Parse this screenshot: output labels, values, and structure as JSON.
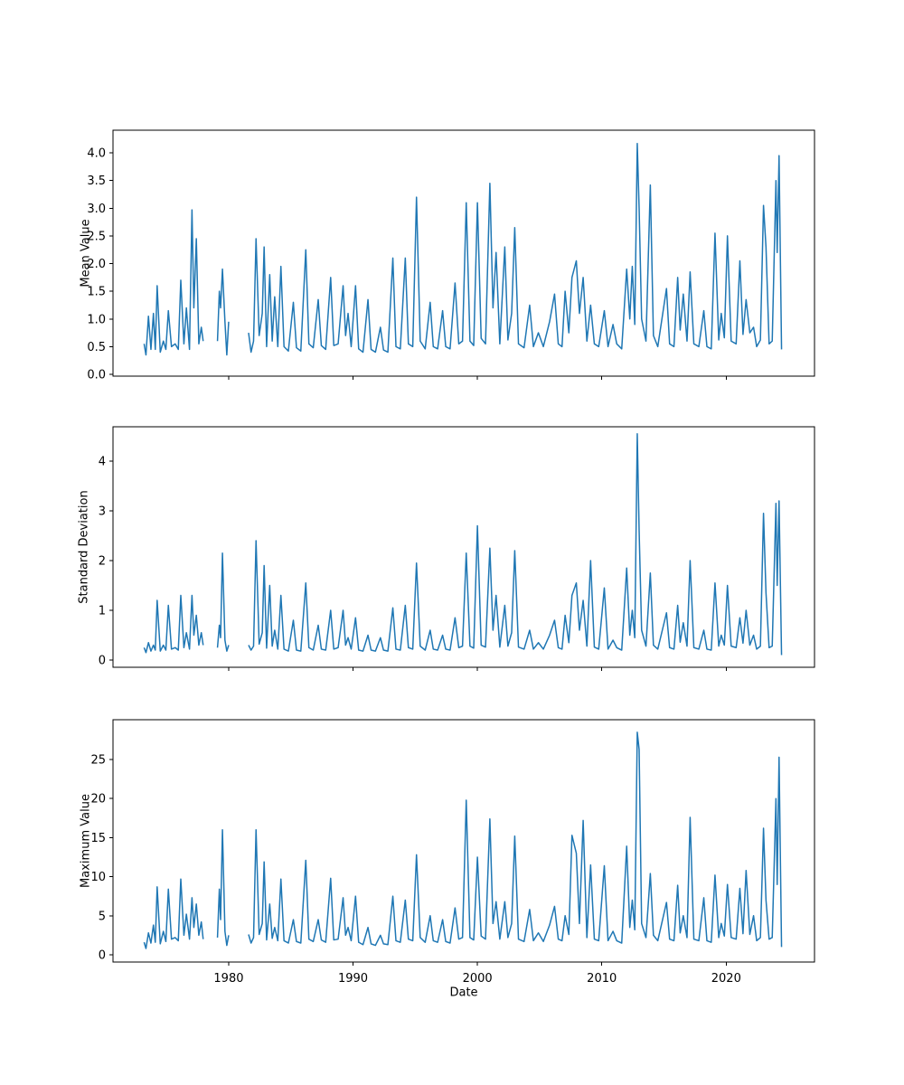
{
  "figure": {
    "background": "#ffffff",
    "text_color": "#000000"
  },
  "chart_data": {
    "type": "line",
    "title": "",
    "xlabel": "Date",
    "xlim": [
      1970.7,
      2027.1
    ],
    "xticks": [
      1980,
      1990,
      2000,
      2010,
      2020
    ],
    "xtick_labels": [
      "1980",
      "1990",
      "2000",
      "2010",
      "2020"
    ],
    "line_color": "#1f77b4",
    "grid": false,
    "legend": "none",
    "panels": [
      {
        "ylabel": "Mean Value",
        "series": "mean",
        "ylim": [
          -0.033,
          4.41
        ],
        "yticks": [
          0.0,
          0.5,
          1.0,
          1.5,
          2.0,
          2.5,
          3.0,
          3.5,
          4.0
        ],
        "ytick_labels": [
          "0.0",
          "0.5",
          "1.0",
          "1.5",
          "2.0",
          "2.5",
          "3.0",
          "3.5",
          "4.0"
        ]
      },
      {
        "ylabel": "Standard Deviation",
        "series": "std",
        "ylim": [
          -0.145,
          4.69
        ],
        "yticks": [
          0,
          1,
          2,
          3,
          4
        ],
        "ytick_labels": [
          "0",
          "1",
          "2",
          "3",
          "4"
        ]
      },
      {
        "ylabel": "Maximum Value",
        "series": "max",
        "ylim": [
          -0.93,
          30.1
        ],
        "yticks": [
          0,
          5,
          10,
          15,
          20,
          25
        ],
        "ytick_labels": [
          "0",
          "5",
          "10",
          "15",
          "20",
          "25"
        ]
      }
    ],
    "points_format": [
      "year",
      "mean",
      "std",
      "max"
    ],
    "points": [
      [
        1973.2,
        0.55,
        0.25,
        1.6
      ],
      [
        1973.35,
        0.35,
        0.15,
        0.8
      ],
      [
        1973.55,
        1.05,
        0.35,
        2.8
      ],
      [
        1973.75,
        0.45,
        0.18,
        1.5
      ],
      [
        1973.95,
        1.1,
        0.3,
        3.8
      ],
      [
        1974.1,
        0.45,
        0.2,
        1.6
      ],
      [
        1974.25,
        1.6,
        1.2,
        8.7
      ],
      [
        1974.5,
        0.4,
        0.18,
        1.4
      ],
      [
        1974.75,
        0.6,
        0.3,
        3.0
      ],
      [
        1974.95,
        0.45,
        0.2,
        1.7
      ],
      [
        1975.15,
        1.15,
        1.1,
        8.4
      ],
      [
        1975.4,
        0.5,
        0.22,
        2.0
      ],
      [
        1975.7,
        0.55,
        0.25,
        2.2
      ],
      [
        1975.95,
        0.45,
        0.2,
        1.8
      ],
      [
        1976.15,
        1.7,
        1.3,
        9.7
      ],
      [
        1976.4,
        0.55,
        0.25,
        2.5
      ],
      [
        1976.6,
        1.2,
        0.55,
        5.2
      ],
      [
        1976.85,
        0.45,
        0.22,
        2.0
      ],
      [
        1977.05,
        2.97,
        1.3,
        7.3
      ],
      [
        1977.2,
        1.2,
        0.5,
        3.5
      ],
      [
        1977.4,
        2.45,
        0.9,
        6.5
      ],
      [
        1977.6,
        0.55,
        0.3,
        2.5
      ],
      [
        1977.8,
        0.85,
        0.55,
        4.2
      ],
      [
        1977.95,
        0.6,
        0.3,
        2.0
      ],
      [
        1978.5,
        null,
        null,
        null
      ],
      [
        1979.1,
        0.6,
        0.25,
        2.2
      ],
      [
        1979.25,
        1.5,
        0.7,
        8.4
      ],
      [
        1979.35,
        1.2,
        0.45,
        4.5
      ],
      [
        1979.5,
        1.9,
        2.15,
        16.0
      ],
      [
        1979.7,
        0.95,
        0.4,
        3.0
      ],
      [
        1979.85,
        0.35,
        0.18,
        1.2
      ],
      [
        1980.0,
        0.95,
        0.3,
        2.5
      ],
      [
        1980.7,
        null,
        null,
        null
      ],
      [
        1981.6,
        0.75,
        0.3,
        2.6
      ],
      [
        1981.8,
        0.4,
        0.2,
        1.5
      ],
      [
        1982.0,
        0.6,
        0.28,
        2.2
      ],
      [
        1982.2,
        2.45,
        2.4,
        16.0
      ],
      [
        1982.45,
        0.7,
        0.32,
        2.6
      ],
      [
        1982.7,
        1.1,
        0.55,
        4.0
      ],
      [
        1982.85,
        2.3,
        1.9,
        11.9
      ],
      [
        1983.05,
        0.5,
        0.24,
        1.9
      ],
      [
        1983.3,
        1.8,
        1.5,
        6.5
      ],
      [
        1983.5,
        0.6,
        0.28,
        2.1
      ],
      [
        1983.7,
        1.4,
        0.6,
        3.5
      ],
      [
        1983.95,
        0.5,
        0.22,
        1.8
      ],
      [
        1984.2,
        1.95,
        1.3,
        9.7
      ],
      [
        1984.45,
        0.5,
        0.22,
        1.8
      ],
      [
        1984.8,
        0.42,
        0.18,
        1.5
      ],
      [
        1985.2,
        1.3,
        0.8,
        4.5
      ],
      [
        1985.45,
        0.48,
        0.2,
        1.7
      ],
      [
        1985.8,
        0.42,
        0.18,
        1.5
      ],
      [
        1986.2,
        2.25,
        1.55,
        12.1
      ],
      [
        1986.45,
        0.55,
        0.25,
        2.0
      ],
      [
        1986.8,
        0.48,
        0.2,
        1.7
      ],
      [
        1987.2,
        1.35,
        0.7,
        4.5
      ],
      [
        1987.45,
        0.52,
        0.22,
        1.9
      ],
      [
        1987.8,
        0.45,
        0.2,
        1.6
      ],
      [
        1988.2,
        1.75,
        1.0,
        9.8
      ],
      [
        1988.45,
        0.52,
        0.22,
        1.9
      ],
      [
        1988.8,
        0.55,
        0.25,
        2.0
      ],
      [
        1989.2,
        1.6,
        1.0,
        7.3
      ],
      [
        1989.4,
        0.7,
        0.3,
        2.5
      ],
      [
        1989.6,
        1.1,
        0.45,
        3.5
      ],
      [
        1989.85,
        0.5,
        0.22,
        1.8
      ],
      [
        1990.2,
        1.6,
        0.85,
        7.5
      ],
      [
        1990.45,
        0.46,
        0.2,
        1.6
      ],
      [
        1990.8,
        0.4,
        0.18,
        1.3
      ],
      [
        1991.2,
        1.35,
        0.5,
        3.5
      ],
      [
        1991.45,
        0.45,
        0.2,
        1.4
      ],
      [
        1991.8,
        0.4,
        0.18,
        1.2
      ],
      [
        1992.2,
        0.85,
        0.45,
        2.5
      ],
      [
        1992.45,
        0.44,
        0.2,
        1.4
      ],
      [
        1992.8,
        0.4,
        0.18,
        1.3
      ],
      [
        1993.2,
        2.1,
        1.05,
        7.5
      ],
      [
        1993.45,
        0.5,
        0.22,
        1.8
      ],
      [
        1993.8,
        0.46,
        0.2,
        1.6
      ],
      [
        1994.2,
        2.1,
        1.1,
        7.0
      ],
      [
        1994.45,
        0.55,
        0.25,
        2.0
      ],
      [
        1994.8,
        0.5,
        0.22,
        1.8
      ],
      [
        1995.1,
        3.2,
        1.95,
        12.8
      ],
      [
        1995.4,
        0.6,
        0.28,
        2.2
      ],
      [
        1995.8,
        0.46,
        0.2,
        1.6
      ],
      [
        1996.2,
        1.3,
        0.6,
        5.0
      ],
      [
        1996.45,
        0.5,
        0.22,
        1.8
      ],
      [
        1996.8,
        0.46,
        0.2,
        1.6
      ],
      [
        1997.2,
        1.15,
        0.5,
        4.5
      ],
      [
        1997.45,
        0.5,
        0.22,
        1.7
      ],
      [
        1997.8,
        0.46,
        0.2,
        1.5
      ],
      [
        1998.2,
        1.65,
        0.85,
        6.0
      ],
      [
        1998.5,
        0.55,
        0.25,
        2.0
      ],
      [
        1998.8,
        0.6,
        0.28,
        2.2
      ],
      [
        1999.1,
        3.1,
        2.15,
        19.8
      ],
      [
        1999.4,
        0.6,
        0.28,
        2.2
      ],
      [
        1999.7,
        0.52,
        0.24,
        1.9
      ],
      [
        2000.0,
        3.1,
        2.7,
        12.5
      ],
      [
        2000.3,
        0.65,
        0.3,
        2.4
      ],
      [
        2000.65,
        0.55,
        0.26,
        2.0
      ],
      [
        2001.0,
        3.45,
        2.25,
        17.4
      ],
      [
        2001.25,
        1.2,
        0.6,
        4.0
      ],
      [
        2001.5,
        2.2,
        1.3,
        6.8
      ],
      [
        2001.8,
        0.55,
        0.26,
        2.0
      ],
      [
        2002.2,
        2.3,
        1.1,
        6.8
      ],
      [
        2002.45,
        0.62,
        0.28,
        2.2
      ],
      [
        2002.75,
        1.1,
        0.55,
        4.0
      ],
      [
        2003.0,
        2.65,
        2.2,
        15.2
      ],
      [
        2003.3,
        0.55,
        0.26,
        2.0
      ],
      [
        2003.75,
        0.48,
        0.22,
        1.7
      ],
      [
        2004.2,
        1.25,
        0.6,
        5.8
      ],
      [
        2004.5,
        0.5,
        0.22,
        1.8
      ],
      [
        2004.9,
        0.75,
        0.35,
        2.8
      ],
      [
        2005.3,
        0.5,
        0.22,
        1.7
      ],
      [
        2005.8,
        0.95,
        0.5,
        3.8
      ],
      [
        2006.2,
        1.45,
        0.8,
        6.2
      ],
      [
        2006.5,
        0.55,
        0.25,
        2.0
      ],
      [
        2006.8,
        0.5,
        0.22,
        1.8
      ],
      [
        2007.05,
        1.5,
        0.9,
        5.0
      ],
      [
        2007.35,
        0.75,
        0.35,
        2.6
      ],
      [
        2007.6,
        1.75,
        1.3,
        15.3
      ],
      [
        2007.95,
        2.05,
        1.55,
        13.0
      ],
      [
        2008.2,
        1.1,
        0.6,
        4.0
      ],
      [
        2008.5,
        1.75,
        1.2,
        17.2
      ],
      [
        2008.8,
        0.6,
        0.28,
        2.2
      ],
      [
        2009.1,
        1.25,
        2.0,
        11.5
      ],
      [
        2009.4,
        0.55,
        0.26,
        2.0
      ],
      [
        2009.75,
        0.5,
        0.22,
        1.8
      ],
      [
        2010.2,
        1.15,
        1.45,
        11.4
      ],
      [
        2010.5,
        0.5,
        0.22,
        1.8
      ],
      [
        2010.9,
        0.9,
        0.4,
        3.0
      ],
      [
        2011.2,
        0.55,
        0.25,
        1.8
      ],
      [
        2011.6,
        0.46,
        0.2,
        1.5
      ],
      [
        2012.0,
        1.9,
        1.85,
        13.9
      ],
      [
        2012.25,
        1.0,
        0.5,
        3.5
      ],
      [
        2012.45,
        1.95,
        1.0,
        7.0
      ],
      [
        2012.65,
        0.9,
        0.45,
        3.2
      ],
      [
        2012.85,
        4.17,
        4.55,
        28.5
      ],
      [
        2013.0,
        3.0,
        2.6,
        26.3
      ],
      [
        2013.2,
        1.0,
        0.6,
        4.0
      ],
      [
        2013.55,
        0.6,
        0.28,
        2.2
      ],
      [
        2013.9,
        3.42,
        1.75,
        10.4
      ],
      [
        2014.15,
        0.7,
        0.3,
        2.5
      ],
      [
        2014.5,
        0.5,
        0.22,
        1.8
      ],
      [
        2015.2,
        1.55,
        0.95,
        6.7
      ],
      [
        2015.45,
        0.55,
        0.25,
        2.0
      ],
      [
        2015.8,
        0.5,
        0.22,
        1.8
      ],
      [
        2016.1,
        1.75,
        1.1,
        8.9
      ],
      [
        2016.3,
        0.8,
        0.36,
        2.8
      ],
      [
        2016.55,
        1.45,
        0.75,
        5.0
      ],
      [
        2016.85,
        0.6,
        0.28,
        2.2
      ],
      [
        2017.1,
        1.85,
        2.0,
        17.6
      ],
      [
        2017.4,
        0.55,
        0.25,
        2.0
      ],
      [
        2017.8,
        0.5,
        0.22,
        1.8
      ],
      [
        2018.2,
        1.15,
        0.6,
        7.3
      ],
      [
        2018.45,
        0.5,
        0.22,
        1.8
      ],
      [
        2018.8,
        0.46,
        0.2,
        1.6
      ],
      [
        2019.1,
        2.55,
        1.55,
        10.2
      ],
      [
        2019.4,
        0.62,
        0.28,
        2.2
      ],
      [
        2019.6,
        1.1,
        0.5,
        4.0
      ],
      [
        2019.85,
        0.66,
        0.3,
        2.4
      ],
      [
        2020.1,
        2.5,
        1.5,
        9.0
      ],
      [
        2020.4,
        0.6,
        0.28,
        2.2
      ],
      [
        2020.8,
        0.55,
        0.25,
        2.0
      ],
      [
        2021.1,
        2.05,
        0.85,
        8.5
      ],
      [
        2021.35,
        0.72,
        0.34,
        2.7
      ],
      [
        2021.6,
        1.35,
        1.0,
        10.8
      ],
      [
        2021.9,
        0.75,
        0.3,
        2.6
      ],
      [
        2022.2,
        0.85,
        0.5,
        5.0
      ],
      [
        2022.45,
        0.5,
        0.22,
        1.8
      ],
      [
        2022.75,
        0.62,
        0.28,
        2.2
      ],
      [
        2023.0,
        3.05,
        2.95,
        16.2
      ],
      [
        2023.2,
        2.3,
        1.35,
        7.0
      ],
      [
        2023.45,
        0.55,
        0.25,
        2.0
      ],
      [
        2023.7,
        0.6,
        0.28,
        2.2
      ],
      [
        2024.0,
        3.5,
        3.15,
        20.0
      ],
      [
        2024.1,
        2.2,
        1.5,
        9.0
      ],
      [
        2024.25,
        3.95,
        3.2,
        25.3
      ],
      [
        2024.45,
        0.45,
        0.1,
        1.0
      ]
    ]
  }
}
